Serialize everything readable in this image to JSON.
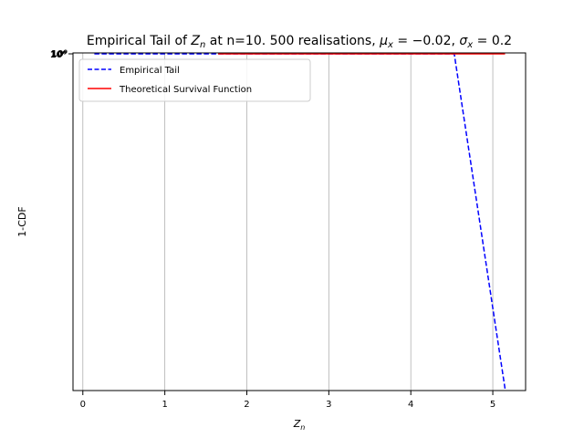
{
  "chart_data": {
    "type": "line",
    "title": "Empirical Tail of Z_n at n=10. 500 realisations, μ_x = −0.02, σ_x = 0.2",
    "title_parts": {
      "prefix": "Empirical Tail of ",
      "zn_base": "Z",
      "zn_sub": "n",
      "mid": " at n=10. 500 realisations, ",
      "mu_sym": "μ",
      "mu_sub": "x",
      "mu_val": " = −0.02, ",
      "sigma_sym": "σ",
      "sigma_sub": "x",
      "sigma_val": " = 0.2"
    },
    "xlabel": "Z_n",
    "xlabel_parts": {
      "base": "Z",
      "sub": "n"
    },
    "ylabel": "1-CDF",
    "xlim": [
      -0.12,
      5.4
    ],
    "x_ticks": [
      "0",
      "1",
      "2",
      "3",
      "4",
      "5"
    ],
    "x_tick_values": [
      0,
      1,
      2,
      3,
      4,
      5
    ],
    "y_scale": "log",
    "y_top_label": "10⁰",
    "grid": "x-only",
    "legend": {
      "position": "upper-left",
      "entries": [
        {
          "name": "Empirical Tail",
          "color": "#0000ff",
          "style": "dashed"
        },
        {
          "name": "Theoretical Survival Function",
          "color": "#ff0000",
          "style": "solid"
        }
      ]
    },
    "series": [
      {
        "name": "Empirical Tail",
        "color": "#0000ff",
        "style": "dashed",
        "x": [
          0.14,
          4.53,
          5.15
        ],
        "y_level": [
          0.0,
          0.0,
          0.995
        ]
      },
      {
        "name": "Theoretical Survival Function",
        "color": "#ff0000",
        "style": "solid",
        "x": [
          1.65,
          5.15
        ],
        "y_level": [
          0.0,
          0.0
        ]
      }
    ]
  }
}
